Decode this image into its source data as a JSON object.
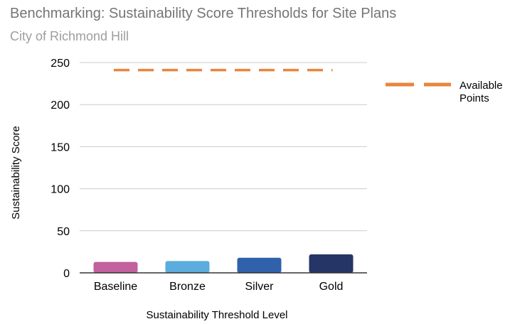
{
  "chart_data": {
    "type": "bar",
    "title": "Benchmarking: Sustainability Score Thresholds for Site Plans",
    "subtitle": "City of Richmond Hill",
    "xlabel": "Sustainability Threshold Level",
    "ylabel": "Sustainability Score",
    "categories": [
      "Baseline",
      "Bronze",
      "Silver",
      "Gold"
    ],
    "values": [
      13,
      14,
      18,
      22
    ],
    "bar_colors": [
      "#c2609e",
      "#5aaddc",
      "#2f62ab",
      "#253565"
    ],
    "ylim": [
      0,
      250
    ],
    "yticks": [
      0,
      50,
      100,
      150,
      200,
      250
    ],
    "grid": true,
    "reference_line": {
      "name_lines": [
        "Available",
        "Points"
      ],
      "value": 241,
      "color": "#e8853d",
      "style": "dashed"
    },
    "legend_position": "right"
  }
}
